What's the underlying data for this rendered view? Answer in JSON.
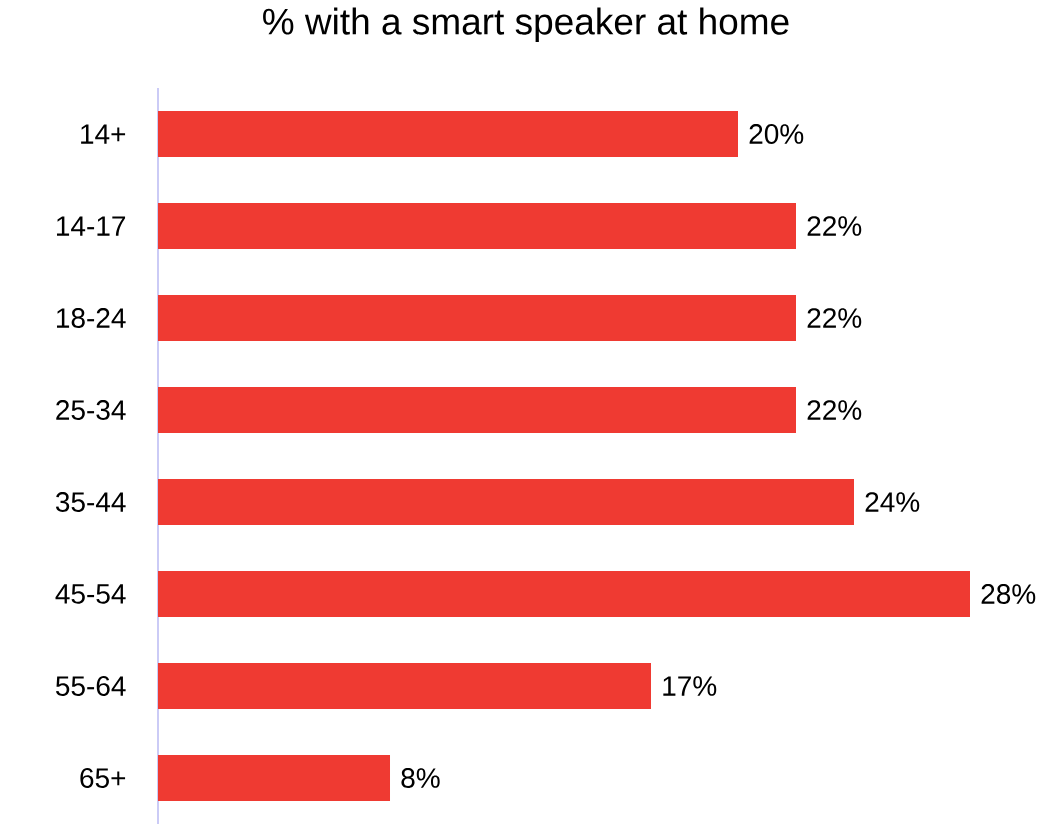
{
  "chart_data": {
    "type": "bar",
    "orientation": "horizontal",
    "title": "% with a smart speaker at home",
    "categories": [
      "14+",
      "14-17",
      "18-24",
      "25-34",
      "35-44",
      "45-54",
      "55-64",
      "65+"
    ],
    "values": [
      20,
      22,
      22,
      22,
      24,
      28,
      17,
      8
    ],
    "value_labels": [
      "20%",
      "22%",
      "22%",
      "22%",
      "24%",
      "28%",
      "17%",
      "8%"
    ],
    "color": "#ef3a32"
  }
}
